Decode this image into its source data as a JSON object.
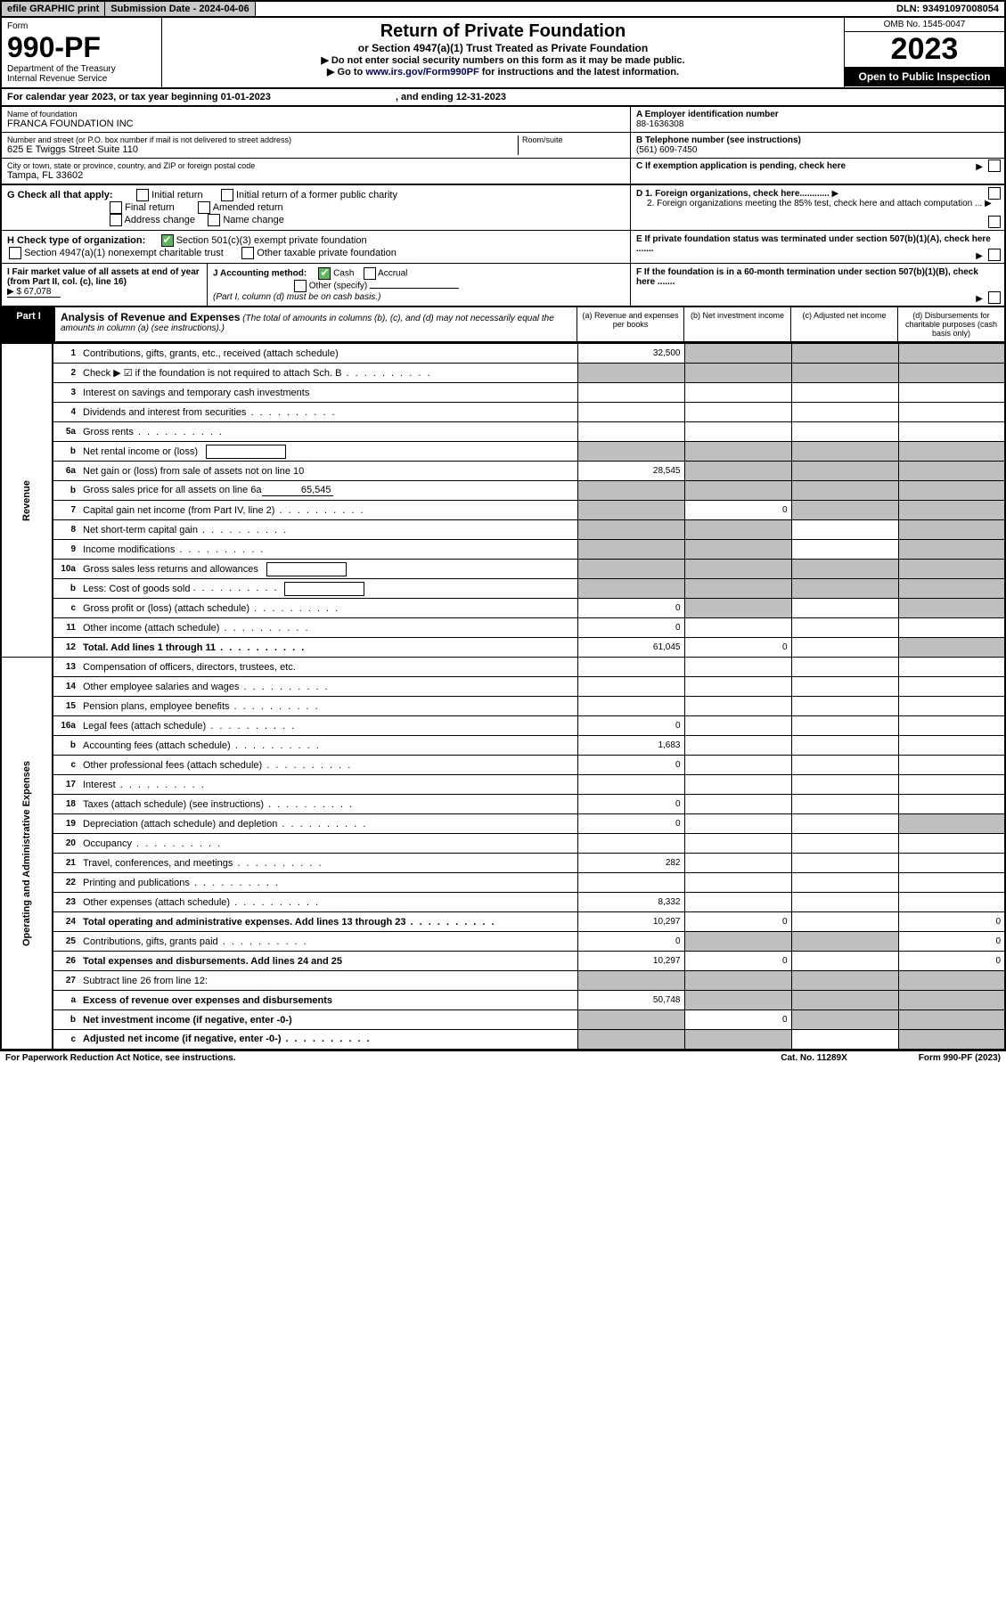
{
  "topbar": {
    "efile": "efile GRAPHIC print",
    "submission": "Submission Date - 2024-04-06",
    "dln": "DLN: 93491097008054"
  },
  "header": {
    "form_label": "Form",
    "form_num": "990-PF",
    "dept": "Department of the Treasury",
    "irs": "Internal Revenue Service",
    "title": "Return of Private Foundation",
    "subtitle": "or Section 4947(a)(1) Trust Treated as Private Foundation",
    "instr1": "▶ Do not enter social security numbers on this form as it may be made public.",
    "instr2": "▶ Go to www.irs.gov/Form990PF for instructions and the latest information.",
    "omb": "OMB No. 1545-0047",
    "year": "2023",
    "open": "Open to Public Inspection"
  },
  "calrow": {
    "text": "For calendar year 2023, or tax year beginning 01-01-2023",
    "ending": ", and ending 12-31-2023"
  },
  "id": {
    "name_lbl": "Name of foundation",
    "name": "FRANCA FOUNDATION INC",
    "addr_lbl": "Number and street (or P.O. box number if mail is not delivered to street address)",
    "addr": "625 E Twiggs Street Suite 110",
    "room_lbl": "Room/suite",
    "city_lbl": "City or town, state or province, country, and ZIP or foreign postal code",
    "city": "Tampa, FL  33602",
    "a_lbl": "A Employer identification number",
    "a_val": "88-1636308",
    "b_lbl": "B Telephone number (see instructions)",
    "b_val": "(561) 609-7450",
    "c_lbl": "C If exemption application is pending, check here"
  },
  "g": {
    "label": "G Check all that apply:",
    "opts": [
      "Initial return",
      "Initial return of a former public charity",
      "Final return",
      "Amended return",
      "Address change",
      "Name change"
    ]
  },
  "d": {
    "d1": "D 1. Foreign organizations, check here............",
    "d2": "2. Foreign organizations meeting the 85% test, check here and attach computation ..."
  },
  "h": {
    "label": "H Check type of organization:",
    "o1": "Section 501(c)(3) exempt private foundation",
    "o2": "Section 4947(a)(1) nonexempt charitable trust",
    "o3": "Other taxable private foundation"
  },
  "e": {
    "text": "E If private foundation status was terminated under section 507(b)(1)(A), check here ......."
  },
  "i": {
    "label": "I Fair market value of all assets at end of year (from Part II, col. (c), line 16)",
    "val": "▶ $  67,078"
  },
  "j": {
    "label": "J Accounting method:",
    "cash": "Cash",
    "accrual": "Accrual",
    "other": "Other (specify)",
    "note": "(Part I, column (d) must be on cash basis.)"
  },
  "f": {
    "text": "F If the foundation is in a 60-month termination under section 507(b)(1)(B), check here ......."
  },
  "part1": {
    "label": "Part I",
    "title": "Analysis of Revenue and Expenses",
    "note": "(The total of amounts in columns (b), (c), and (d) may not necessarily equal the amounts in column (a) (see instructions).)",
    "col_a": "(a) Revenue and expenses per books",
    "col_b": "(b) Net investment income",
    "col_c": "(c) Adjusted net income",
    "col_d": "(d) Disbursements for charitable purposes (cash basis only)"
  },
  "sidelabels": {
    "rev": "Revenue",
    "exp": "Operating and Administrative Expenses"
  },
  "rows": [
    {
      "n": "1",
      "d": "Contributions, gifts, grants, etc., received (attach schedule)",
      "a": "32,500",
      "bg": [
        "",
        "g",
        "g",
        "g"
      ]
    },
    {
      "n": "2",
      "d": "Check ▶ ☑ if the foundation is not required to attach Sch. B",
      "bg": [
        "g",
        "g",
        "g",
        "g"
      ],
      "dots": 1
    },
    {
      "n": "3",
      "d": "Interest on savings and temporary cash investments"
    },
    {
      "n": "4",
      "d": "Dividends and interest from securities",
      "dots": 1
    },
    {
      "n": "5a",
      "d": "Gross rents",
      "dots": 1
    },
    {
      "n": "b",
      "d": "Net rental income or (loss)",
      "inline": 1,
      "bg": [
        "g",
        "g",
        "g",
        "g"
      ]
    },
    {
      "n": "6a",
      "d": "Net gain or (loss) from sale of assets not on line 10",
      "a": "28,545",
      "bg": [
        "",
        "g",
        "g",
        "g"
      ]
    },
    {
      "n": "b",
      "d": "Gross sales price for all assets on line 6a",
      "inline_val": "65,545",
      "bg": [
        "g",
        "g",
        "g",
        "g"
      ]
    },
    {
      "n": "7",
      "d": "Capital gain net income (from Part IV, line 2)",
      "b": "0",
      "bg": [
        "g",
        "",
        "g",
        "g"
      ],
      "dots": 1
    },
    {
      "n": "8",
      "d": "Net short-term capital gain",
      "bg": [
        "g",
        "g",
        "",
        "g"
      ],
      "dots": 1
    },
    {
      "n": "9",
      "d": "Income modifications",
      "bg": [
        "g",
        "g",
        "",
        "g"
      ],
      "dots": 1
    },
    {
      "n": "10a",
      "d": "Gross sales less returns and allowances",
      "inline": 1,
      "bg": [
        "g",
        "g",
        "g",
        "g"
      ]
    },
    {
      "n": "b",
      "d": "Less: Cost of goods sold",
      "inline": 1,
      "bg": [
        "g",
        "g",
        "g",
        "g"
      ],
      "dots": 1
    },
    {
      "n": "c",
      "d": "Gross profit or (loss) (attach schedule)",
      "a": "0",
      "bg": [
        "",
        "g",
        "",
        "g"
      ],
      "dots": 1
    },
    {
      "n": "11",
      "d": "Other income (attach schedule)",
      "a": "0",
      "dots": 1
    },
    {
      "n": "12",
      "d": "Total. Add lines 1 through 11",
      "a": "61,045",
      "b": "0",
      "bg": [
        "",
        "",
        "",
        "g"
      ],
      "bold": 1,
      "dots": 1
    }
  ],
  "exp_rows": [
    {
      "n": "13",
      "d": "Compensation of officers, directors, trustees, etc."
    },
    {
      "n": "14",
      "d": "Other employee salaries and wages",
      "dots": 1
    },
    {
      "n": "15",
      "d": "Pension plans, employee benefits",
      "dots": 1
    },
    {
      "n": "16a",
      "d": "Legal fees (attach schedule)",
      "a": "0",
      "dots": 1
    },
    {
      "n": "b",
      "d": "Accounting fees (attach schedule)",
      "a": "1,683",
      "dots": 1
    },
    {
      "n": "c",
      "d": "Other professional fees (attach schedule)",
      "a": "0",
      "dots": 1
    },
    {
      "n": "17",
      "d": "Interest",
      "dots": 1
    },
    {
      "n": "18",
      "d": "Taxes (attach schedule) (see instructions)",
      "a": "0",
      "dots": 1
    },
    {
      "n": "19",
      "d": "Depreciation (attach schedule) and depletion",
      "a": "0",
      "bg": [
        "",
        "",
        "",
        "g"
      ],
      "dots": 1
    },
    {
      "n": "20",
      "d": "Occupancy",
      "dots": 1
    },
    {
      "n": "21",
      "d": "Travel, conferences, and meetings",
      "a": "282",
      "dots": 1
    },
    {
      "n": "22",
      "d": "Printing and publications",
      "dots": 1
    },
    {
      "n": "23",
      "d": "Other expenses (attach schedule)",
      "a": "8,332",
      "dots": 1
    },
    {
      "n": "24",
      "d": "Total operating and administrative expenses. Add lines 13 through 23",
      "a": "10,297",
      "b": "0",
      "dd": "0",
      "bold": 1,
      "dots": 1
    },
    {
      "n": "25",
      "d": "Contributions, gifts, grants paid",
      "a": "0",
      "bg": [
        "",
        "g",
        "g",
        ""
      ],
      "dd": "0",
      "dots": 1
    },
    {
      "n": "26",
      "d": "Total expenses and disbursements. Add lines 24 and 25",
      "a": "10,297",
      "b": "0",
      "dd": "0",
      "bold": 1
    },
    {
      "n": "27",
      "d": "Subtract line 26 from line 12:",
      "bg": [
        "g",
        "g",
        "g",
        "g"
      ]
    },
    {
      "n": "a",
      "d": "Excess of revenue over expenses and disbursements",
      "a": "50,748",
      "bg": [
        "",
        "g",
        "g",
        "g"
      ],
      "bold": 1
    },
    {
      "n": "b",
      "d": "Net investment income (if negative, enter -0-)",
      "b": "0",
      "bg": [
        "g",
        "",
        "g",
        "g"
      ],
      "bold": 1
    },
    {
      "n": "c",
      "d": "Adjusted net income (if negative, enter -0-)",
      "bg": [
        "g",
        "g",
        "",
        "g"
      ],
      "bold": 1,
      "dots": 1
    }
  ],
  "footer": {
    "left": "For Paperwork Reduction Act Notice, see instructions.",
    "mid": "Cat. No. 11289X",
    "right": "Form 990-PF (2023)"
  },
  "colors": {
    "grey": "#bfbfbf",
    "topgrey": "#c8c8c8",
    "green": "#5cb85c",
    "link": "#000088"
  }
}
